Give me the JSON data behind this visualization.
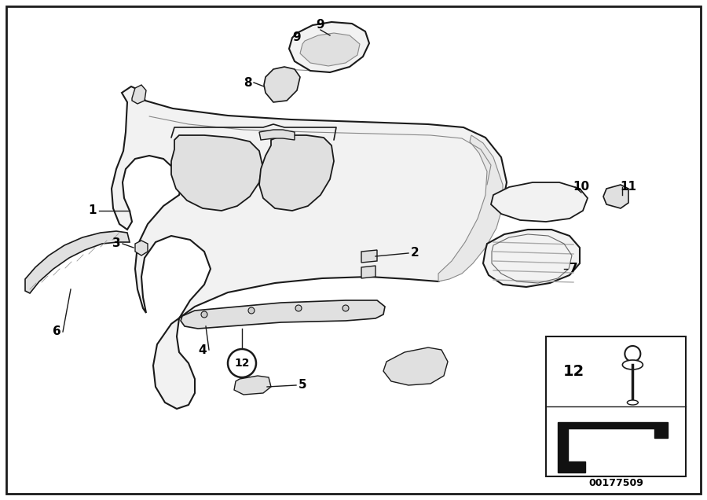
{
  "background_color": "#ffffff",
  "watermark": "00177509",
  "figure_width": 9.0,
  "figure_height": 6.36,
  "dpi": 100,
  "line_color": "#1a1a1a",
  "fill_light": "#f2f2f2",
  "fill_mid": "#e0e0e0",
  "fill_dark": "#c8c8c8",
  "label_fontsize": 11,
  "watermark_fontsize": 9
}
